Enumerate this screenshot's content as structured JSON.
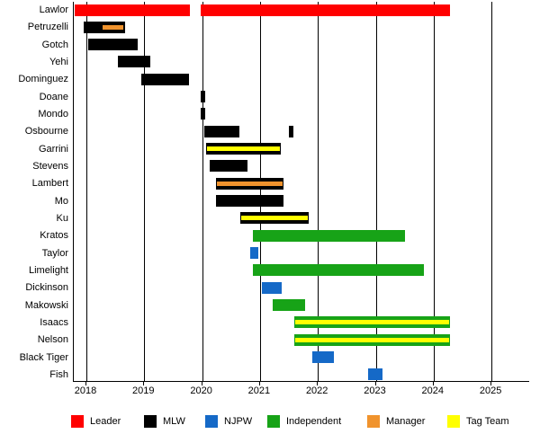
{
  "chart_data": {
    "type": "bar",
    "variant": "gantt-membership-timeline",
    "title": "",
    "x_axis": {
      "ticks": [
        "2018",
        "2019",
        "2020",
        "2021",
        "2022",
        "2023",
        "2024",
        "2025"
      ],
      "min": 2017.78,
      "max": 2025.65,
      "grid": true
    },
    "colors": {
      "leader": "#ff0000",
      "mlw": "#000000",
      "njpw": "#1569c7",
      "independent": "#17a317",
      "manager": "#f0932d",
      "tagteam": "#ffff00"
    },
    "rows": [
      {
        "name": "Lawlor",
        "bars": [
          {
            "from": 2017.8,
            "to": 2019.79,
            "type": "leader"
          },
          {
            "from": 2019.97,
            "to": 2024.28,
            "type": "leader"
          }
        ]
      },
      {
        "name": "Petruzelli",
        "bars": [
          {
            "from": 2017.95,
            "to": 2018.67,
            "type": "mlw",
            "stripe": {
              "type": "manager",
              "from": 2018.28,
              "to": 2018.64
            }
          }
        ]
      },
      {
        "name": "Gotch",
        "bars": [
          {
            "from": 2018.03,
            "to": 2018.88,
            "type": "mlw"
          }
        ]
      },
      {
        "name": "Yehi",
        "bars": [
          {
            "from": 2018.54,
            "to": 2019.1,
            "type": "mlw"
          }
        ]
      },
      {
        "name": "Dominguez",
        "bars": [
          {
            "from": 2018.95,
            "to": 2019.78,
            "type": "mlw"
          }
        ]
      },
      {
        "name": "Doane",
        "bars": [
          {
            "from": 2019.98,
            "to": 2020.06,
            "type": "mlw"
          }
        ]
      },
      {
        "name": "Mondo",
        "bars": [
          {
            "from": 2019.98,
            "to": 2020.06,
            "type": "mlw"
          }
        ]
      },
      {
        "name": "Osbourne",
        "bars": [
          {
            "from": 2020.04,
            "to": 2020.64,
            "type": "mlw"
          },
          {
            "from": 2021.5,
            "to": 2021.57,
            "type": "mlw"
          }
        ]
      },
      {
        "name": "Garrini",
        "bars": [
          {
            "from": 2020.07,
            "to": 2021.36,
            "type": "mlw",
            "stripe": {
              "type": "tagteam"
            }
          }
        ]
      },
      {
        "name": "Stevens",
        "bars": [
          {
            "from": 2020.13,
            "to": 2020.78,
            "type": "mlw"
          }
        ]
      },
      {
        "name": "Lambert",
        "bars": [
          {
            "from": 2020.24,
            "to": 2021.41,
            "type": "mlw",
            "stripe": {
              "type": "manager"
            }
          }
        ]
      },
      {
        "name": "Mo",
        "bars": [
          {
            "from": 2020.24,
            "to": 2021.41,
            "type": "mlw"
          }
        ]
      },
      {
        "name": "Ku",
        "bars": [
          {
            "from": 2020.66,
            "to": 2021.84,
            "type": "mlw",
            "stripe": {
              "type": "tagteam"
            }
          }
        ]
      },
      {
        "name": "Kratos",
        "bars": [
          {
            "from": 2020.88,
            "to": 2023.5,
            "type": "independent"
          }
        ]
      },
      {
        "name": "Taylor",
        "bars": [
          {
            "from": 2020.83,
            "to": 2020.97,
            "type": "njpw"
          }
        ]
      },
      {
        "name": "Limelight",
        "bars": [
          {
            "from": 2020.88,
            "to": 2023.83,
            "type": "independent"
          }
        ]
      },
      {
        "name": "Dickinson",
        "bars": [
          {
            "from": 2021.03,
            "to": 2021.37,
            "type": "njpw"
          }
        ]
      },
      {
        "name": "Makowski",
        "bars": [
          {
            "from": 2021.22,
            "to": 2021.78,
            "type": "independent"
          }
        ]
      },
      {
        "name": "Isaacs",
        "bars": [
          {
            "from": 2021.59,
            "to": 2024.28,
            "type": "independent",
            "stripe": {
              "type": "tagteam"
            }
          }
        ]
      },
      {
        "name": "Nelson",
        "bars": [
          {
            "from": 2021.59,
            "to": 2024.28,
            "type": "independent",
            "stripe": {
              "type": "tagteam"
            }
          }
        ]
      },
      {
        "name": "Black Tiger",
        "bars": [
          {
            "from": 2021.9,
            "to": 2022.28,
            "type": "njpw"
          }
        ]
      },
      {
        "name": "Fish",
        "bars": [
          {
            "from": 2022.87,
            "to": 2023.12,
            "type": "njpw"
          }
        ]
      }
    ],
    "legend": [
      {
        "label": "Leader",
        "type": "leader"
      },
      {
        "label": "MLW",
        "type": "mlw"
      },
      {
        "label": "NJPW",
        "type": "njpw"
      },
      {
        "label": "Independent",
        "type": "independent"
      },
      {
        "label": "Manager",
        "type": "manager"
      },
      {
        "label": "Tag Team",
        "type": "tagteam"
      }
    ],
    "legend_position": "bottom"
  }
}
